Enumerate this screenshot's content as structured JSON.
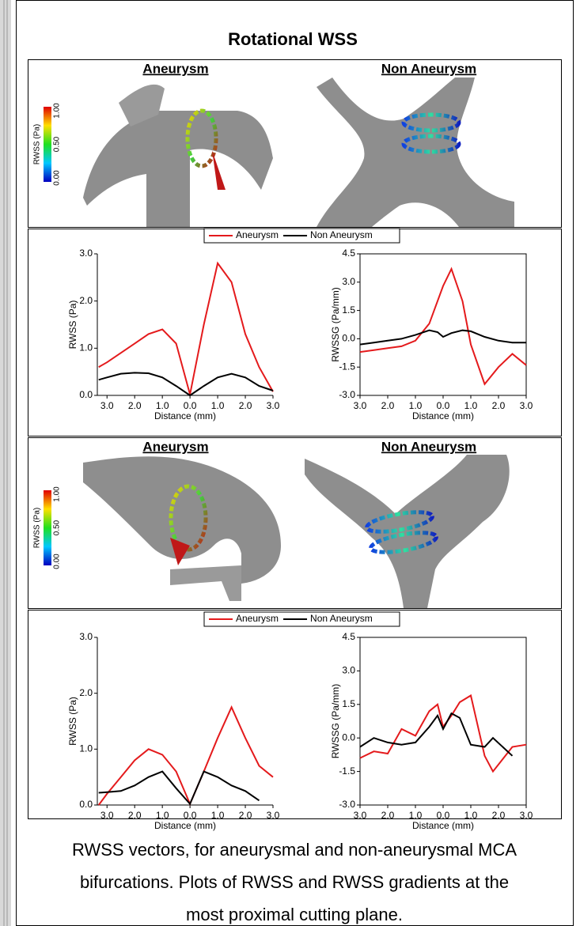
{
  "title": "Rotational WSS",
  "image_panels": [
    {
      "left_label": "Aneurysm",
      "right_label": "Non Aneurysm",
      "colorbar": {
        "label": "RWSS (Pa)",
        "ticks": [
          "0.00",
          "0.50",
          "1.00"
        ]
      }
    },
    {
      "left_label": "Aneurysm",
      "right_label": "Non Aneurysm",
      "colorbar": {
        "label": "RWSS (Pa)",
        "ticks": [
          "0.00",
          "0.50",
          "1.00"
        ]
      }
    }
  ],
  "chart_data": [
    {
      "type": "line",
      "x_label": "Distance (mm)",
      "y_label": "RWSS (Pa)",
      "xlim": [
        -3.35,
        3
      ],
      "xticks": [
        {
          "value": -3,
          "label": "3.0"
        },
        {
          "value": -2,
          "label": "2.0"
        },
        {
          "value": -1,
          "label": "1.0"
        },
        {
          "value": 0,
          "label": "0.0"
        },
        {
          "value": 1,
          "label": "1.0"
        },
        {
          "value": 2,
          "label": "2.0"
        },
        {
          "value": 3,
          "label": "3.0"
        }
      ],
      "ylim": [
        0,
        3
      ],
      "yticks": [
        {
          "value": 0,
          "label": "0.0"
        },
        {
          "value": 1,
          "label": "1.0"
        },
        {
          "value": 2,
          "label": "2.0"
        },
        {
          "value": 3,
          "label": "3.0"
        }
      ],
      "x": [
        -3.3,
        -3,
        -2.5,
        -2,
        -1.5,
        -1,
        -0.5,
        0,
        0.5,
        1,
        1.5,
        2,
        2.5,
        3
      ],
      "series": [
        {
          "name": "Aneurysm",
          "color": "#e41a1c",
          "values": [
            0.6,
            0.7,
            0.9,
            1.1,
            1.3,
            1.4,
            1.1,
            0.02,
            1.5,
            2.8,
            2.4,
            1.3,
            0.6,
            0.08
          ]
        },
        {
          "name": "Non Aneurysm",
          "color": "#000000",
          "values": [
            0.33,
            0.38,
            0.46,
            0.48,
            0.47,
            0.38,
            0.2,
            0.0,
            0.2,
            0.38,
            0.46,
            0.38,
            0.2,
            0.1
          ]
        }
      ]
    },
    {
      "type": "line",
      "x_label": "Distance (mm)",
      "y_label": "RWSSG (Pa/mm)",
      "xlim": [
        -3,
        3
      ],
      "xticks": [
        {
          "value": -3,
          "label": "3.0"
        },
        {
          "value": -2,
          "label": "2.0"
        },
        {
          "value": -1,
          "label": "1.0"
        },
        {
          "value": 0,
          "label": "0.0"
        },
        {
          "value": 1,
          "label": "1.0"
        },
        {
          "value": 2,
          "label": "2.0"
        },
        {
          "value": 3,
          "label": "3.0"
        }
      ],
      "ylim": [
        -3,
        4.5
      ],
      "yticks": [
        {
          "value": -3,
          "label": "-3.0"
        },
        {
          "value": -1.5,
          "label": "-1.5"
        },
        {
          "value": 0,
          "label": "0.0"
        },
        {
          "value": 1.5,
          "label": "1.5"
        },
        {
          "value": 3,
          "label": "3.0"
        },
        {
          "value": 4.5,
          "label": "4.5"
        }
      ],
      "x": [
        -3,
        -2.5,
        -2,
        -1.5,
        -1,
        -0.5,
        -0.2,
        0,
        0.3,
        0.7,
        1,
        1.5,
        2,
        2.5,
        3
      ],
      "series": [
        {
          "color": "#e41a1c",
          "values": [
            -0.7,
            -0.6,
            -0.5,
            -0.4,
            -0.1,
            0.8,
            2.0,
            2.8,
            3.7,
            2.0,
            -0.3,
            -2.4,
            -1.5,
            -0.8,
            -1.4
          ]
        },
        {
          "color": "#000000",
          "values": [
            -0.3,
            -0.2,
            -0.1,
            0.0,
            0.2,
            0.45,
            0.35,
            0.1,
            0.3,
            0.45,
            0.4,
            0.1,
            -0.1,
            -0.2,
            -0.2
          ]
        }
      ]
    },
    {
      "type": "line",
      "x_label": "Distance (mm)",
      "y_label": "RWSS (Pa)",
      "xlim": [
        -3.35,
        3
      ],
      "xticks": [
        {
          "value": -3,
          "label": "3.0"
        },
        {
          "value": -2,
          "label": "2.0"
        },
        {
          "value": -1,
          "label": "1.0"
        },
        {
          "value": 0,
          "label": "0.0"
        },
        {
          "value": 1,
          "label": "1.0"
        },
        {
          "value": 2,
          "label": "2.0"
        },
        {
          "value": 3,
          "label": "3.0"
        }
      ],
      "ylim": [
        0,
        3
      ],
      "yticks": [
        {
          "value": 0,
          "label": "0.0"
        },
        {
          "value": 1,
          "label": "1.0"
        },
        {
          "value": 2,
          "label": "2.0"
        },
        {
          "value": 3,
          "label": "3.0"
        }
      ],
      "x": [
        -3.3,
        -3,
        -2.5,
        -2,
        -1.5,
        -1,
        -0.5,
        0,
        0.5,
        1,
        1.5,
        2,
        2.5,
        3
      ],
      "series": [
        {
          "name": "Aneurysm",
          "color": "#e41a1c",
          "values": [
            0.0,
            0.2,
            0.5,
            0.8,
            1.0,
            0.9,
            0.6,
            0.02,
            0.6,
            1.2,
            1.75,
            1.2,
            0.7,
            0.5
          ]
        },
        {
          "name": "Non Aneurysm",
          "color": "#000000",
          "values": [
            0.22,
            0.23,
            0.25,
            0.35,
            0.5,
            0.6,
            0.3,
            0.02,
            0.6,
            0.5,
            0.35,
            0.25,
            0.08,
            null
          ]
        }
      ]
    },
    {
      "type": "line",
      "x_label": "Distance (mm)",
      "y_label": "RWSSG (Pa/mm)",
      "xlim": [
        -3,
        3
      ],
      "xticks": [
        {
          "value": -3,
          "label": "3.0"
        },
        {
          "value": -2,
          "label": "2.0"
        },
        {
          "value": -1,
          "label": "1.0"
        },
        {
          "value": 0,
          "label": "0.0"
        },
        {
          "value": 1,
          "label": "1.0"
        },
        {
          "value": 2,
          "label": "2.0"
        },
        {
          "value": 3,
          "label": "3.0"
        }
      ],
      "ylim": [
        -3,
        4.5
      ],
      "yticks": [
        {
          "value": -3,
          "label": "-3.0"
        },
        {
          "value": -1.5,
          "label": "-1.5"
        },
        {
          "value": 0,
          "label": "0.0"
        },
        {
          "value": 1.5,
          "label": "1.5"
        },
        {
          "value": 3,
          "label": "3.0"
        },
        {
          "value": 4.5,
          "label": "4.5"
        }
      ],
      "x": [
        -3,
        -2.5,
        -2,
        -1.5,
        -1,
        -0.5,
        -0.2,
        0,
        0.3,
        0.6,
        1,
        1.5,
        1.8,
        2.5,
        3
      ],
      "series": [
        {
          "color": "#e41a1c",
          "values": [
            -0.9,
            -0.6,
            -0.7,
            0.4,
            0.1,
            1.2,
            1.5,
            0.5,
            1.0,
            1.6,
            1.9,
            -0.8,
            -1.5,
            -0.4,
            -0.3
          ]
        },
        {
          "color": "#000000",
          "values": [
            -0.4,
            0.0,
            -0.2,
            -0.3,
            -0.2,
            0.5,
            1.0,
            0.4,
            1.1,
            0.9,
            -0.3,
            -0.4,
            0.0,
            -0.8,
            null
          ]
        }
      ]
    }
  ],
  "caption": [
    "RWSS vectors, for aneurysmal and non-aneurysmal MCA",
    "bifurcations. Plots of RWSS and RWSS gradients at the",
    "most proximal cutting plane."
  ]
}
